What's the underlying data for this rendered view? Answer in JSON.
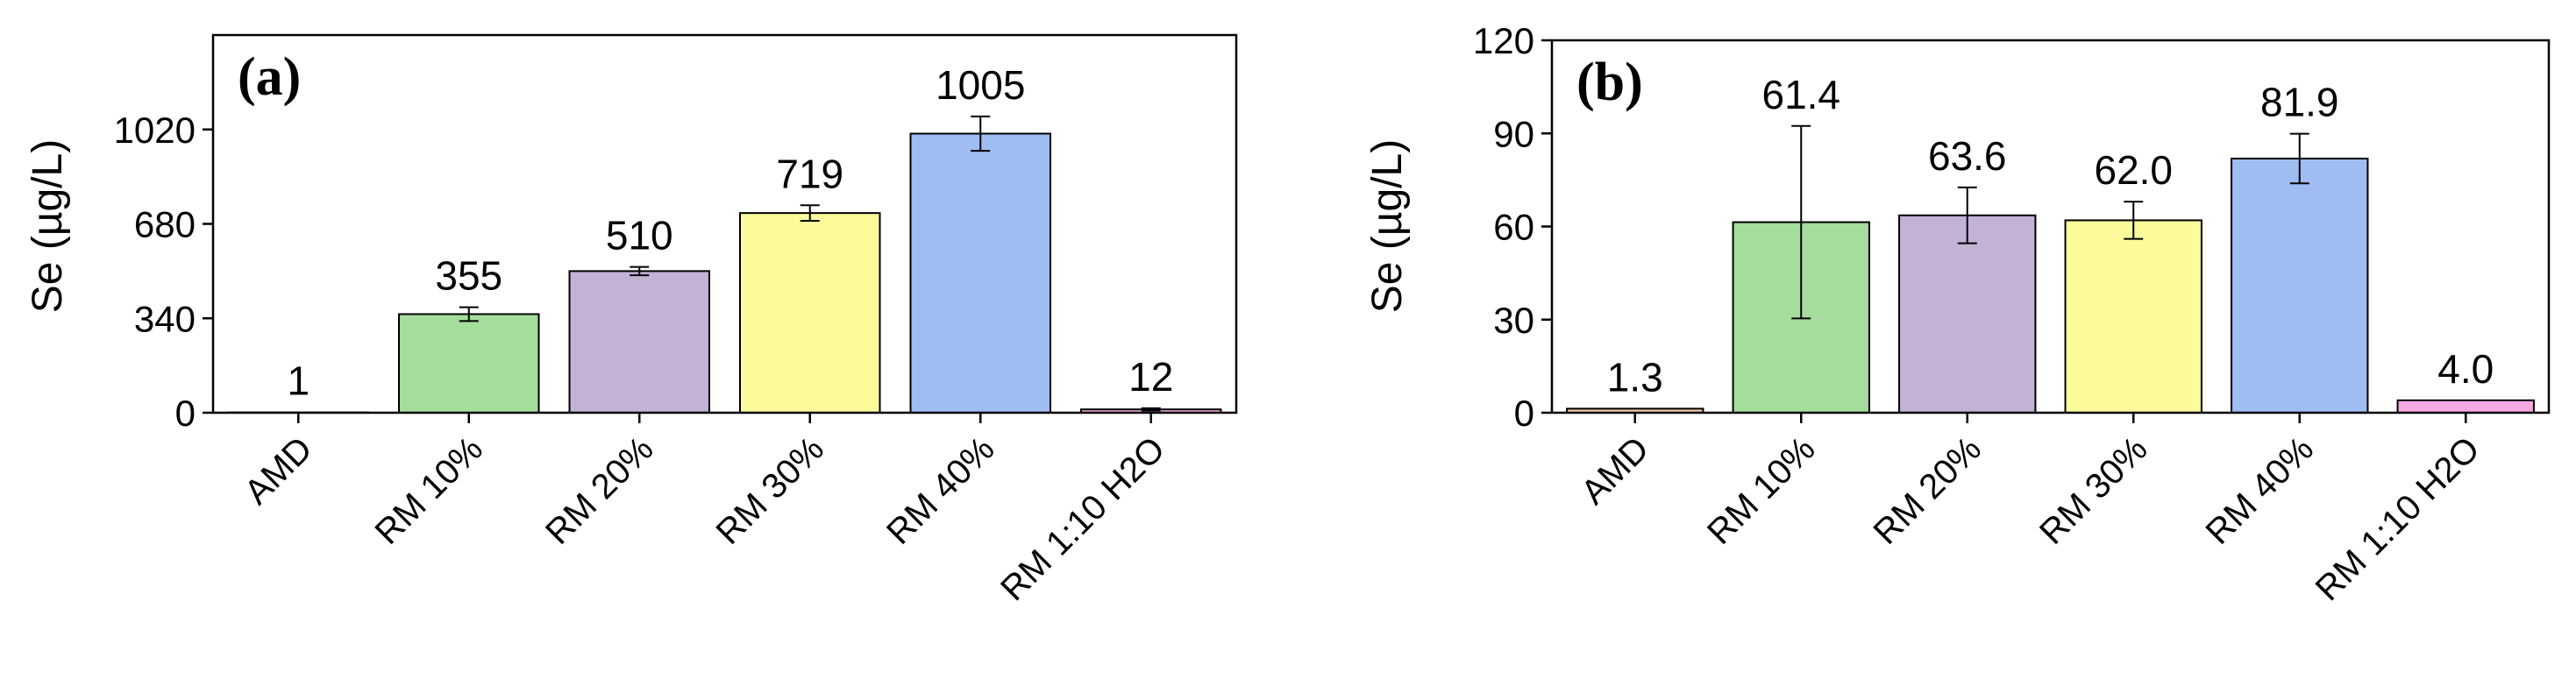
{
  "chart_data": [
    {
      "type": "bar",
      "panel_label": "(a)",
      "ylabel": "Se (µg/L)",
      "categories": [
        "AMD",
        "RM 10%",
        "RM 20%",
        "RM 30%",
        "RM 40%",
        "RM 1:10 H2O"
      ],
      "values": [
        1,
        355,
        510,
        719,
        1005,
        12
      ],
      "value_labels": [
        "1",
        "355",
        "510",
        "719",
        "1005",
        "12"
      ],
      "errors": [
        0,
        25,
        15,
        28,
        62,
        4
      ],
      "bar_colors": [
        "#f5c9a8",
        "#a5dd9d",
        "#c3b1d6",
        "#fbfb9c",
        "#9fbdf2",
        "#f7a9e4"
      ],
      "ylim": [
        0,
        1360
      ],
      "yticks": [
        0,
        340,
        680,
        1020
      ],
      "ytick_labels": [
        "0",
        "340",
        "680",
        "1020"
      ],
      "grid": false
    },
    {
      "type": "bar",
      "panel_label": "(b)",
      "ylabel": "Se (µg/L)",
      "categories": [
        "AMD",
        "RM 10%",
        "RM 20%",
        "RM 30%",
        "RM 40%",
        "RM 1:10 H2O"
      ],
      "values": [
        1.3,
        61.4,
        63.6,
        62.0,
        81.9,
        4.0
      ],
      "value_labels": [
        "1.3",
        "61.4",
        "63.6",
        "62.0",
        "81.9",
        "4.0"
      ],
      "errors": [
        0,
        31,
        9,
        6,
        8,
        0
      ],
      "bar_colors": [
        "#f5c9a8",
        "#a5dd9d",
        "#c3b1d6",
        "#fbfb9c",
        "#9fbdf2",
        "#f7a9e4"
      ],
      "ylim": [
        0,
        120
      ],
      "yticks": [
        0,
        30,
        60,
        90,
        120
      ],
      "ytick_labels": [
        "0",
        "30",
        "60",
        "90",
        "120"
      ],
      "grid": false
    }
  ]
}
